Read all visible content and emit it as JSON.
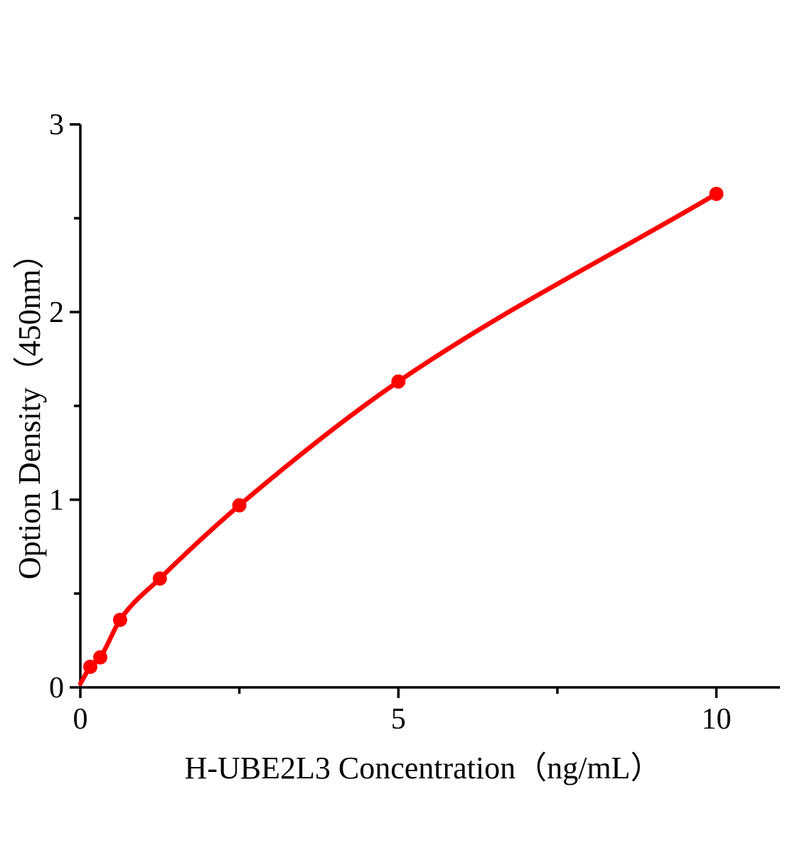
{
  "page": {
    "background_color": "#ffffff"
  },
  "chart_data": {
    "type": "scatter",
    "title": "",
    "xlabel": "H-UBE2L3 Concentration（ng/mL）",
    "ylabel": "Option Density（450nm）",
    "x": [
      0.156,
      0.3125,
      0.625,
      1.25,
      2.5,
      5,
      10
    ],
    "y": [
      0.11,
      0.16,
      0.36,
      0.58,
      0.97,
      1.63,
      2.63
    ],
    "curve_start": {
      "x": 0,
      "y": 0.02
    },
    "xlim": [
      0,
      11
    ],
    "ylim": [
      0,
      3
    ],
    "x_major_ticks": [
      0,
      5,
      10
    ],
    "x_minor_ticks": [
      2.5,
      7.5
    ],
    "y_major_ticks": [
      0,
      1,
      2,
      3
    ],
    "y_minor_ticks": [
      0.5,
      1.5,
      2.5
    ],
    "grid": false,
    "legend": false,
    "line_color": "#ff0000",
    "marker_color": "#ff0000",
    "axis_color": "#000000",
    "tick_label_color": "#000000"
  }
}
